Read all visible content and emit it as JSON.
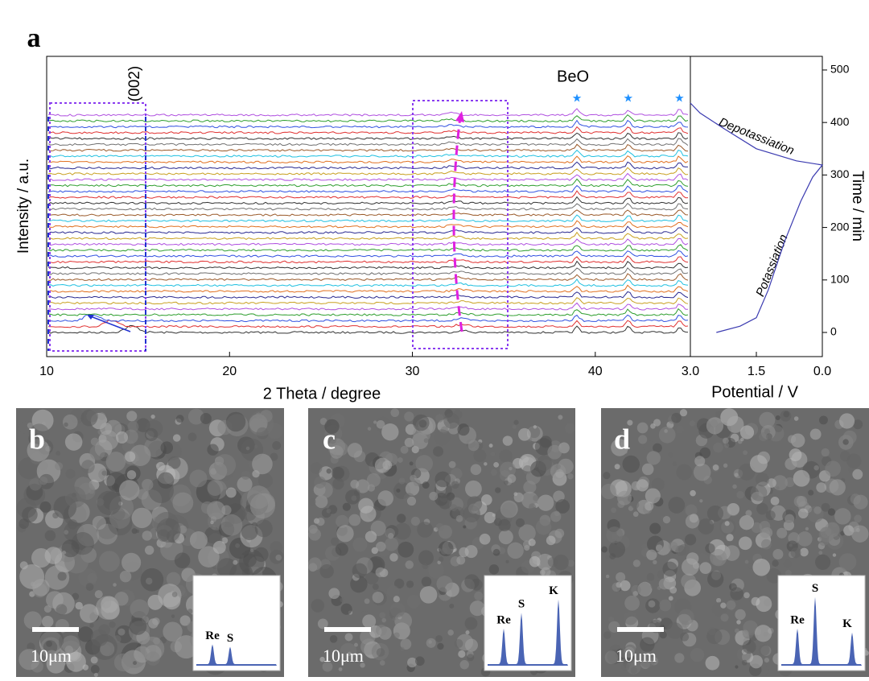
{
  "chart_data": [
    {
      "type": "stack",
      "panel_label": "a",
      "xlabel": "2 Theta / degree",
      "ylabel": "Intensity / a.u.",
      "xlim": [
        10,
        45.2
      ],
      "xticks": [
        10,
        20,
        30,
        40
      ],
      "annotations": [
        "(002)",
        "BeO"
      ],
      "peaks": [
        39.0,
        41.8,
        44.6
      ],
      "peak_color": "#1e90ff"
    },
    {
      "type": "line",
      "xlabel": "Potential / V",
      "ylabel": "Time / min",
      "xlim": [
        3.0,
        0.0
      ],
      "xticks": [
        {
          "value": 3,
          "label": "3.0"
        },
        {
          "value": 1.5,
          "label": "1.5"
        },
        {
          "value": 0,
          "label": "0.0"
        }
      ],
      "ylim": [
        -46,
        526
      ],
      "yticks": [
        0,
        100,
        200,
        300,
        400,
        500
      ],
      "annotations": [
        "Depotassiation",
        "Potassiation"
      ],
      "series": [
        {
          "color": "#3a3ab0",
          "x": [
            2.41,
            1.87,
            1.5,
            1.23,
            0.86,
            0.49,
            0.22,
            0,
            0.59,
            1.5,
            2.23,
            2.78,
            3.0
          ],
          "values": [
            0,
            12,
            28,
            81,
            173,
            250,
            296,
            319,
            327,
            350,
            388,
            418,
            437
          ]
        }
      ]
    }
  ],
  "micrographs": [
    {
      "label": "b",
      "scale": "10μm",
      "eds": [
        "Re",
        "S"
      ]
    },
    {
      "label": "c",
      "scale": "10μm",
      "eds": [
        "Re",
        "S",
        "K"
      ]
    },
    {
      "label": "d",
      "scale": "10μm",
      "eds": [
        "Re",
        "S",
        "K"
      ]
    }
  ]
}
